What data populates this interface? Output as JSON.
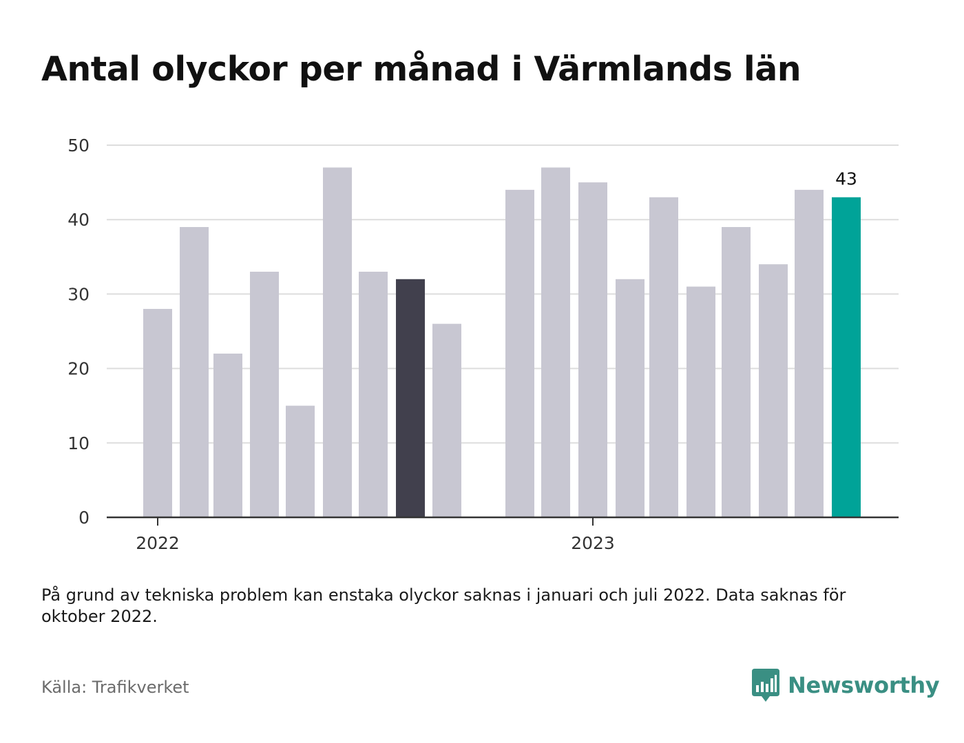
{
  "chart_data": {
    "type": "bar",
    "title": "Antal olyckor per månad i Värmlands län",
    "xlabel": "",
    "ylabel": "",
    "ylim": [
      0,
      50
    ],
    "yticks": [
      0,
      10,
      20,
      30,
      40,
      50
    ],
    "x_tick_labels": [
      "2022",
      "2023"
    ],
    "grid": true,
    "values": [
      28,
      39,
      22,
      33,
      15,
      47,
      33,
      32,
      26,
      44,
      47,
      45,
      32,
      43,
      31,
      39,
      34,
      44,
      43
    ],
    "highlighted_dark_index": 7,
    "highlighted_latest_index": 18,
    "data_labels": [
      {
        "index": 18,
        "text": "43"
      }
    ],
    "colors": {
      "default": "#c8c7d2",
      "dark": "#41404d",
      "highlight": "#00a398"
    }
  },
  "note": "På grund av tekniska problem kan enstaka olyckor saknas i januari och juli 2022. Data saknas för oktober 2022.",
  "source": "Källa: Trafikverket",
  "brand": {
    "name": "Newsworthy",
    "icon": "newsworthy-logo-icon",
    "color": "#3a8f83"
  }
}
